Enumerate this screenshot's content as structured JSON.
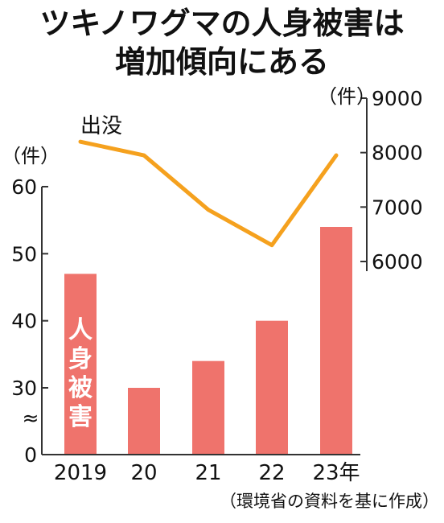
{
  "title_lines": [
    "ツキノワグマの人身被害は",
    "増加傾向にある"
  ],
  "source": "（環境省の資料を基に作成）",
  "colors": {
    "bar": "#EF736C",
    "line": "#F5A11E",
    "axis": "#333333",
    "text": "#111111"
  },
  "chart_data": {
    "type": "bar+line",
    "categories": [
      "2019",
      "20",
      "21",
      "22",
      "23年"
    ],
    "series": [
      {
        "name": "人身被害",
        "kind": "bar",
        "axis": "left",
        "values": [
          47,
          30,
          34,
          40,
          54
        ]
      },
      {
        "name": "出没",
        "kind": "line",
        "axis": "right",
        "values": [
          8200,
          7950,
          6950,
          6300,
          7950
        ]
      }
    ],
    "left_axis": {
      "unit": "（件）",
      "ticks": [
        "0",
        "30",
        "40",
        "50",
        "60"
      ],
      "ylim": [
        0,
        60
      ],
      "axis_break": true,
      "break_symbol": "≈"
    },
    "right_axis": {
      "unit": "（件）",
      "ticks": [
        "6000",
        "7000",
        "8000",
        "9000"
      ],
      "ylim": [
        5700,
        9000
      ]
    },
    "grid": false,
    "legend": "inline labels"
  }
}
